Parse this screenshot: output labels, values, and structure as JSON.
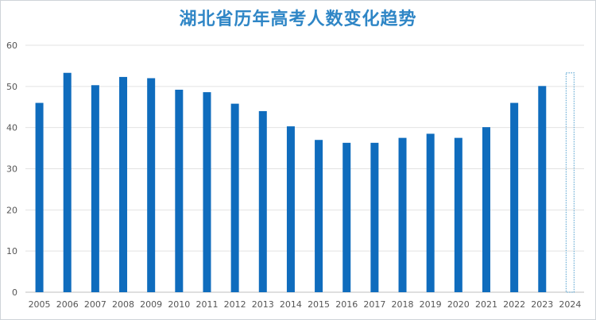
{
  "chart_data": {
    "type": "bar",
    "title": "湖北省历年高考人数变化趋势",
    "xlabel": "",
    "ylabel": "",
    "ylim": [
      0,
      60
    ],
    "yticks": [
      0,
      10,
      20,
      30,
      40,
      50,
      60
    ],
    "grid": true,
    "categories": [
      "2005",
      "2006",
      "2007",
      "2008",
      "2009",
      "2010",
      "2011",
      "2012",
      "2013",
      "2014",
      "2015",
      "2016",
      "2017",
      "2018",
      "2019",
      "2020",
      "2021",
      "2022",
      "2023",
      "2024"
    ],
    "values": [
      46,
      53.3,
      50.3,
      52.3,
      52,
      49.2,
      48.6,
      45.8,
      44,
      40.3,
      37,
      36.3,
      36.3,
      37.5,
      38.5,
      37.5,
      40.1,
      46,
      50.1,
      53.3
    ],
    "bar_color": "#0f6cbd",
    "highlight": {
      "category": "2024",
      "style": "dotted-outline",
      "color": "#6aaed6"
    }
  }
}
